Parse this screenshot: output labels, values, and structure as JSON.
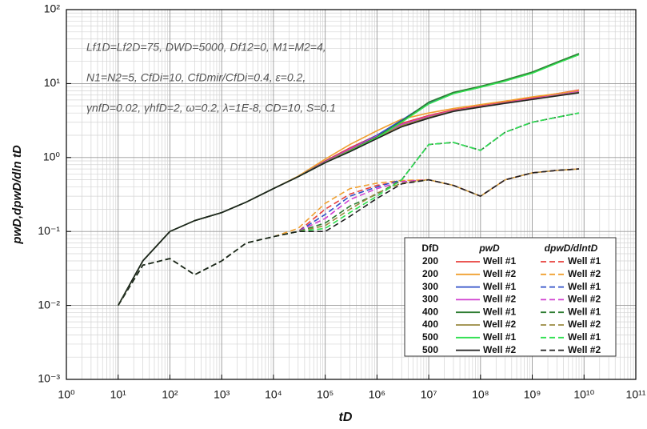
{
  "chart_data": {
    "type": "line",
    "log_x": true,
    "log_y": true,
    "grid": true,
    "minor_grid": true,
    "x_label": "tD",
    "y_label": "pwD,dpwD/dln tD",
    "annotations": [
      "Lf1D=Lf2D=75,  DWD=5000,  Df12=0,  M1=M2=4,",
      "N1=N2=5,  CfDi=10,  CfDmir/CfDi=0.4,  ε=0.2,",
      "γnfD=0.02,  γhfD=2,  ω=0.2,  λ=1E-8,  CD=10,  S=0.1"
    ],
    "xlim": [
      1,
      100000000000
    ],
    "ylim": [
      0.001,
      100
    ],
    "xticks": [
      {
        "value": 1,
        "label": "10⁰"
      },
      {
        "value": 10,
        "label": "10¹"
      },
      {
        "value": 100,
        "label": "10²"
      },
      {
        "value": 1000,
        "label": "10³"
      },
      {
        "value": 10000,
        "label": "10⁴"
      },
      {
        "value": 100000,
        "label": "10⁵"
      },
      {
        "value": 1000000,
        "label": "10⁶"
      },
      {
        "value": 10000000,
        "label": "10⁷"
      },
      {
        "value": 100000000,
        "label": "10⁸"
      },
      {
        "value": 1000000000,
        "label": "10⁹"
      },
      {
        "value": 10000000000,
        "label": "10¹⁰"
      },
      {
        "value": 100000000000,
        "label": "10¹¹"
      }
    ],
    "yticks": [
      {
        "value": 0.001,
        "label": "10⁻³"
      },
      {
        "value": 0.01,
        "label": "10⁻²"
      },
      {
        "value": 0.1,
        "label": "10⁻¹"
      },
      {
        "value": 1,
        "label": "10⁰"
      },
      {
        "value": 10,
        "label": "10¹"
      },
      {
        "value": 100,
        "label": "10²"
      }
    ],
    "legend": {
      "corner": "lower right",
      "headers": [
        "DfD",
        "pwD",
        "dpwD/dlntD"
      ],
      "dfd": [
        200,
        200,
        300,
        300,
        400,
        400,
        500,
        500
      ]
    },
    "x": [
      10,
      30,
      100,
      300,
      1000,
      3000,
      10000,
      30000,
      100000,
      300000,
      1000000,
      3000000,
      10000000,
      30000000,
      100000000,
      300000000,
      1000000000,
      3000000000,
      8000000000
    ],
    "series": [
      {
        "name": "Well #1",
        "color": "#e8413c",
        "dash": false,
        "values": [
          0.01,
          0.04,
          0.1,
          0.14,
          0.18,
          0.25,
          0.38,
          0.55,
          0.9,
          1.35,
          2.0,
          2.9,
          3.7,
          4.4,
          5.0,
          5.6,
          6.4,
          7.3,
          8.2
        ]
      },
      {
        "name": "Well #2",
        "color": "#f0a030",
        "dash": false,
        "values": [
          0.01,
          0.04,
          0.1,
          0.14,
          0.18,
          0.25,
          0.38,
          0.56,
          0.95,
          1.5,
          2.3,
          3.3,
          4.0,
          4.6,
          5.2,
          5.8,
          6.6,
          7.3,
          8.0
        ]
      },
      {
        "name": "Well #1",
        "color": "#3050c8",
        "dash": false,
        "values": [
          0.01,
          0.04,
          0.1,
          0.14,
          0.18,
          0.25,
          0.38,
          0.55,
          0.88,
          1.3,
          2.0,
          3.2,
          5.5,
          7.5,
          9.0,
          11,
          14,
          19,
          25
        ]
      },
      {
        "name": "Well #2",
        "color": "#d040d0",
        "dash": false,
        "values": [
          0.01,
          0.04,
          0.1,
          0.14,
          0.18,
          0.25,
          0.38,
          0.55,
          0.87,
          1.3,
          1.95,
          2.8,
          3.6,
          4.3,
          4.9,
          5.5,
          6.2,
          7.0,
          7.8
        ]
      },
      {
        "name": "Well #1",
        "color": "#2e7d32",
        "dash": false,
        "values": [
          0.01,
          0.04,
          0.1,
          0.14,
          0.18,
          0.25,
          0.38,
          0.55,
          0.86,
          1.25,
          1.9,
          3.1,
          5.6,
          7.6,
          9.2,
          11.2,
          14.3,
          19.5,
          25.5
        ]
      },
      {
        "name": "Well #2",
        "color": "#9a8a40",
        "dash": false,
        "values": [
          0.01,
          0.04,
          0.1,
          0.14,
          0.18,
          0.25,
          0.38,
          0.55,
          0.86,
          1.25,
          1.85,
          2.7,
          3.5,
          4.25,
          4.85,
          5.45,
          6.1,
          6.9,
          7.6
        ]
      },
      {
        "name": "Well #1",
        "color": "#30e050",
        "dash": false,
        "values": [
          0.01,
          0.04,
          0.1,
          0.14,
          0.18,
          0.25,
          0.38,
          0.55,
          0.85,
          1.22,
          1.85,
          3.0,
          5.3,
          7.3,
          8.9,
          10.8,
          13.8,
          18.8,
          24.5
        ]
      },
      {
        "name": "Well #2",
        "color": "#202020",
        "dash": false,
        "values": [
          0.01,
          0.04,
          0.1,
          0.14,
          0.18,
          0.25,
          0.38,
          0.55,
          0.85,
          1.2,
          1.8,
          2.6,
          3.4,
          4.2,
          4.8,
          5.4,
          6.1,
          6.8,
          7.5
        ]
      },
      {
        "name": "Well #1",
        "color": "#e8413c",
        "dash": true,
        "values": [
          0.01,
          0.035,
          0.043,
          0.026,
          0.04,
          0.07,
          0.085,
          0.1,
          0.2,
          0.32,
          0.42,
          0.48,
          0.5,
          0.42,
          0.3,
          0.5,
          0.62,
          0.67,
          0.7
        ]
      },
      {
        "name": "Well #2",
        "color": "#f0a030",
        "dash": true,
        "values": [
          0.01,
          0.035,
          0.043,
          0.026,
          0.04,
          0.07,
          0.085,
          0.11,
          0.24,
          0.38,
          0.45,
          0.49,
          0.5,
          0.42,
          0.3,
          0.5,
          0.62,
          0.67,
          0.7
        ]
      },
      {
        "name": "Well #1",
        "color": "#3050c8",
        "dash": true,
        "values": [
          0.01,
          0.035,
          0.043,
          0.026,
          0.04,
          0.07,
          0.085,
          0.1,
          0.17,
          0.3,
          0.4,
          0.5,
          1.5,
          1.6,
          1.25,
          2.2,
          3.0,
          3.5,
          4.0
        ]
      },
      {
        "name": "Well #2",
        "color": "#d040d0",
        "dash": true,
        "values": [
          0.01,
          0.035,
          0.043,
          0.026,
          0.04,
          0.07,
          0.085,
          0.1,
          0.15,
          0.27,
          0.38,
          0.47,
          0.5,
          0.42,
          0.3,
          0.5,
          0.62,
          0.67,
          0.7
        ]
      },
      {
        "name": "Well #1",
        "color": "#2e7d32",
        "dash": true,
        "values": [
          0.01,
          0.035,
          0.043,
          0.026,
          0.04,
          0.07,
          0.085,
          0.1,
          0.13,
          0.22,
          0.32,
          0.5,
          1.5,
          1.6,
          1.25,
          2.2,
          3.0,
          3.5,
          4.0
        ]
      },
      {
        "name": "Well #2",
        "color": "#9a8a40",
        "dash": true,
        "values": [
          0.01,
          0.035,
          0.043,
          0.026,
          0.04,
          0.07,
          0.085,
          0.1,
          0.12,
          0.2,
          0.33,
          0.45,
          0.5,
          0.42,
          0.3,
          0.5,
          0.62,
          0.67,
          0.7
        ]
      },
      {
        "name": "Well #1",
        "color": "#30e050",
        "dash": true,
        "values": [
          0.01,
          0.035,
          0.043,
          0.026,
          0.04,
          0.07,
          0.085,
          0.1,
          0.11,
          0.18,
          0.3,
          0.5,
          1.5,
          1.6,
          1.25,
          2.2,
          3.0,
          3.5,
          4.0
        ]
      },
      {
        "name": "Well #2",
        "color": "#202020",
        "dash": true,
        "values": [
          0.01,
          0.035,
          0.043,
          0.026,
          0.04,
          0.07,
          0.085,
          0.1,
          0.1,
          0.16,
          0.28,
          0.44,
          0.5,
          0.42,
          0.3,
          0.5,
          0.62,
          0.67,
          0.7
        ]
      }
    ]
  }
}
